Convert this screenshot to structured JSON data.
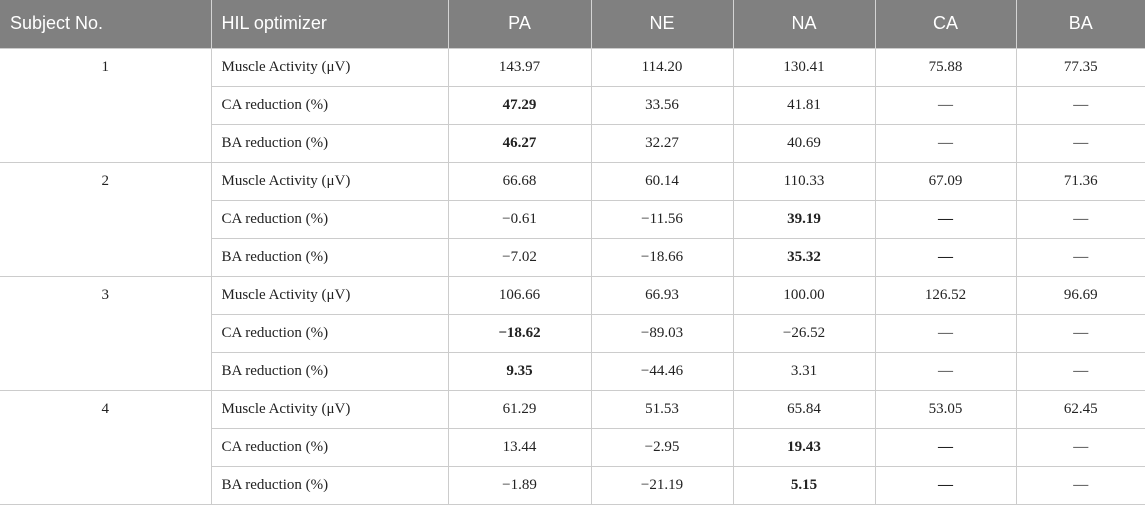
{
  "headers": [
    "Subject No.",
    "HIL optimizer",
    "PA",
    "NE",
    "NA",
    "CA",
    "BA"
  ],
  "subjects": [
    {
      "id": "1",
      "rows": [
        {
          "metric": "Muscle Activity (μV)",
          "values": [
            {
              "text": "143.97",
              "bold": false
            },
            {
              "text": "114.20",
              "bold": false
            },
            {
              "text": "130.41",
              "bold": false
            },
            {
              "text": "75.88",
              "bold": false
            },
            {
              "text": "77.35",
              "bold": false
            }
          ]
        },
        {
          "metric": "CA reduction (%)",
          "values": [
            {
              "text": "47.29",
              "bold": true
            },
            {
              "text": "33.56",
              "bold": false
            },
            {
              "text": "41.81",
              "bold": false
            },
            {
              "text": "—",
              "bold": false
            },
            {
              "text": "—",
              "bold": false
            }
          ]
        },
        {
          "metric": "BA reduction (%)",
          "values": [
            {
              "text": "46.27",
              "bold": true
            },
            {
              "text": "32.27",
              "bold": false
            },
            {
              "text": "40.69",
              "bold": false
            },
            {
              "text": "—",
              "bold": false
            },
            {
              "text": "—",
              "bold": false
            }
          ]
        }
      ]
    },
    {
      "id": "2",
      "rows": [
        {
          "metric": "Muscle Activity (μV)",
          "values": [
            {
              "text": "66.68",
              "bold": false
            },
            {
              "text": "60.14",
              "bold": false
            },
            {
              "text": "110.33",
              "bold": false
            },
            {
              "text": "67.09",
              "bold": false
            },
            {
              "text": "71.36",
              "bold": false
            }
          ]
        },
        {
          "metric": "CA reduction (%)",
          "values": [
            {
              "text": "−0.61",
              "bold": false
            },
            {
              "text": "−11.56",
              "bold": false
            },
            {
              "text": "39.19",
              "bold": true
            },
            {
              "text": "—",
              "bold": true
            },
            {
              "text": "—",
              "bold": false
            }
          ]
        },
        {
          "metric": "BA reduction (%)",
          "values": [
            {
              "text": "−7.02",
              "bold": false
            },
            {
              "text": "−18.66",
              "bold": false
            },
            {
              "text": "35.32",
              "bold": true
            },
            {
              "text": "—",
              "bold": true
            },
            {
              "text": "—",
              "bold": false
            }
          ]
        }
      ]
    },
    {
      "id": "3",
      "rows": [
        {
          "metric": "Muscle Activity (μV)",
          "values": [
            {
              "text": "106.66",
              "bold": false
            },
            {
              "text": "66.93",
              "bold": false
            },
            {
              "text": "100.00",
              "bold": false
            },
            {
              "text": "126.52",
              "bold": false
            },
            {
              "text": "96.69",
              "bold": false
            }
          ]
        },
        {
          "metric": "CA reduction (%)",
          "values": [
            {
              "text": "−18.62",
              "bold": true
            },
            {
              "text": "−89.03",
              "bold": false
            },
            {
              "text": "−26.52",
              "bold": false
            },
            {
              "text": "—",
              "bold": false
            },
            {
              "text": "—",
              "bold": false
            }
          ]
        },
        {
          "metric": "BA reduction (%)",
          "values": [
            {
              "text": "9.35",
              "bold": true
            },
            {
              "text": "−44.46",
              "bold": false
            },
            {
              "text": "3.31",
              "bold": false
            },
            {
              "text": "—",
              "bold": false
            },
            {
              "text": "—",
              "bold": false
            }
          ]
        }
      ]
    },
    {
      "id": "4",
      "rows": [
        {
          "metric": "Muscle Activity (μV)",
          "values": [
            {
              "text": "61.29",
              "bold": false
            },
            {
              "text": "51.53",
              "bold": false
            },
            {
              "text": "65.84",
              "bold": false
            },
            {
              "text": "53.05",
              "bold": false
            },
            {
              "text": "62.45",
              "bold": false
            }
          ]
        },
        {
          "metric": "CA reduction (%)",
          "values": [
            {
              "text": "13.44",
              "bold": false
            },
            {
              "text": "−2.95",
              "bold": false
            },
            {
              "text": "19.43",
              "bold": true
            },
            {
              "text": "—",
              "bold": true
            },
            {
              "text": "—",
              "bold": false
            }
          ]
        },
        {
          "metric": "BA reduction (%)",
          "values": [
            {
              "text": "−1.89",
              "bold": false
            },
            {
              "text": "−21.19",
              "bold": false
            },
            {
              "text": "5.15",
              "bold": true
            },
            {
              "text": "—",
              "bold": true
            },
            {
              "text": "—",
              "bold": false
            }
          ]
        }
      ]
    }
  ]
}
